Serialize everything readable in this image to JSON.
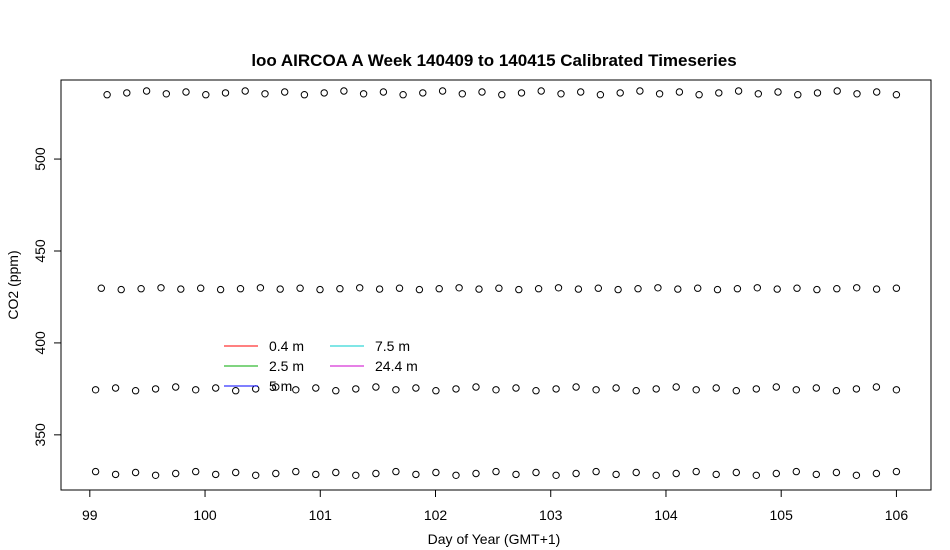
{
  "chart_data": {
    "type": "scatter",
    "title": "loo AIRCOA A  Week 140409 to 140415  Calibrated Timeseries",
    "xlabel": "Day of Year (GMT+1)",
    "ylabel": "CO2 (ppm)",
    "xlim": [
      98.75,
      106.3
    ],
    "ylim": [
      320,
      543
    ],
    "xticks": [
      99,
      100,
      101,
      102,
      103,
      104,
      105,
      106
    ],
    "yticks": [
      350,
      400,
      450,
      500
    ],
    "grid": false,
    "legend": {
      "placement": "center-left",
      "entries": [
        {
          "label": "0.4 m",
          "color": "#ff0000"
        },
        {
          "label": "2.5 m",
          "color": "#00aa00"
        },
        {
          "label": "5 m",
          "color": "#0000ff"
        },
        {
          "label": "7.5 m",
          "color": "#00cccc"
        },
        {
          "label": "24.4 m",
          "color": "#cc00cc"
        }
      ]
    },
    "series": [
      {
        "marker": "open-circle",
        "color": "#000000",
        "x_start": 99.15,
        "x_end": 106.0,
        "y_values": [
          535,
          537
        ]
      },
      {
        "marker": "open-circle",
        "color": "#000000",
        "x_start": 99.1,
        "x_end": 106.0,
        "y_values": [
          429,
          430
        ]
      },
      {
        "marker": "open-circle",
        "color": "#000000",
        "x_start": 99.05,
        "x_end": 106.0,
        "y_values": [
          374,
          376
        ]
      },
      {
        "marker": "open-circle",
        "color": "#000000",
        "x_start": 99.05,
        "x_end": 106.0,
        "y_values": [
          328,
          330
        ]
      }
    ]
  }
}
